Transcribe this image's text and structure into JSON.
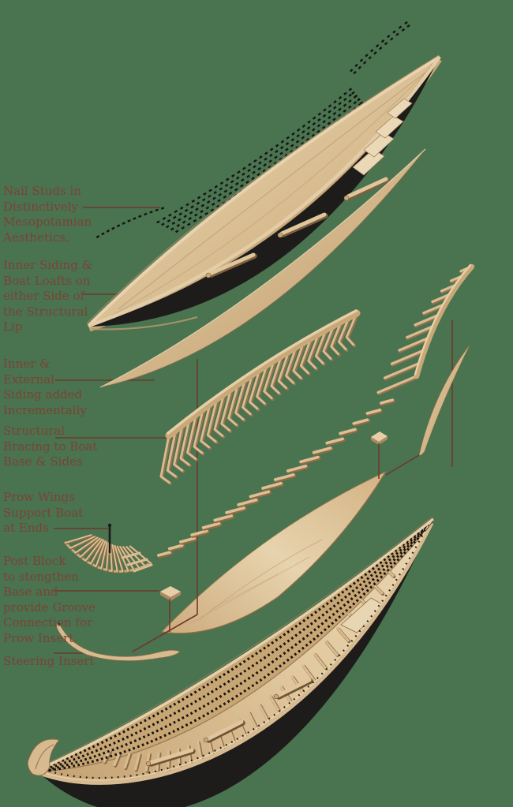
{
  "palette": {
    "background": "#4a7350",
    "label_color": "#7b4334",
    "leader_line": "#6e3a2a",
    "wood_light": "#e8d5b2",
    "wood_mid": "#cfae82",
    "wood_dark": "#9a7b55",
    "hull_black": "#1d1c1a",
    "stud_black": "#161514"
  },
  "diagram": {
    "type": "exploded-view",
    "subject": "Mesopotamian boat model construction",
    "labels": [
      {
        "name": "nail-studs",
        "text": "Nail Studs in\nDistinctively\nMesopotamian\nAesthetics."
      },
      {
        "name": "inner-siding",
        "text": "Inner Siding &\nBoat Loafts on\neither Side of\nthe Structural\nLip"
      },
      {
        "name": "incremental-siding",
        "text": "Inner &\nExternal\nSiding added\nIncrementally"
      },
      {
        "name": "structural-bracing",
        "text": "Structural\nBracing to Boat\nBase & Sides"
      },
      {
        "name": "prow-wings",
        "text": "Prow Wings\nSupport Boat\nat Ends"
      },
      {
        "name": "post-block",
        "text": "Post Block\nto stengthen\nBase and\nprovide Groove\nConnection for\nProw Insert."
      },
      {
        "name": "steering-insert",
        "text": "Steering Insert"
      }
    ]
  }
}
